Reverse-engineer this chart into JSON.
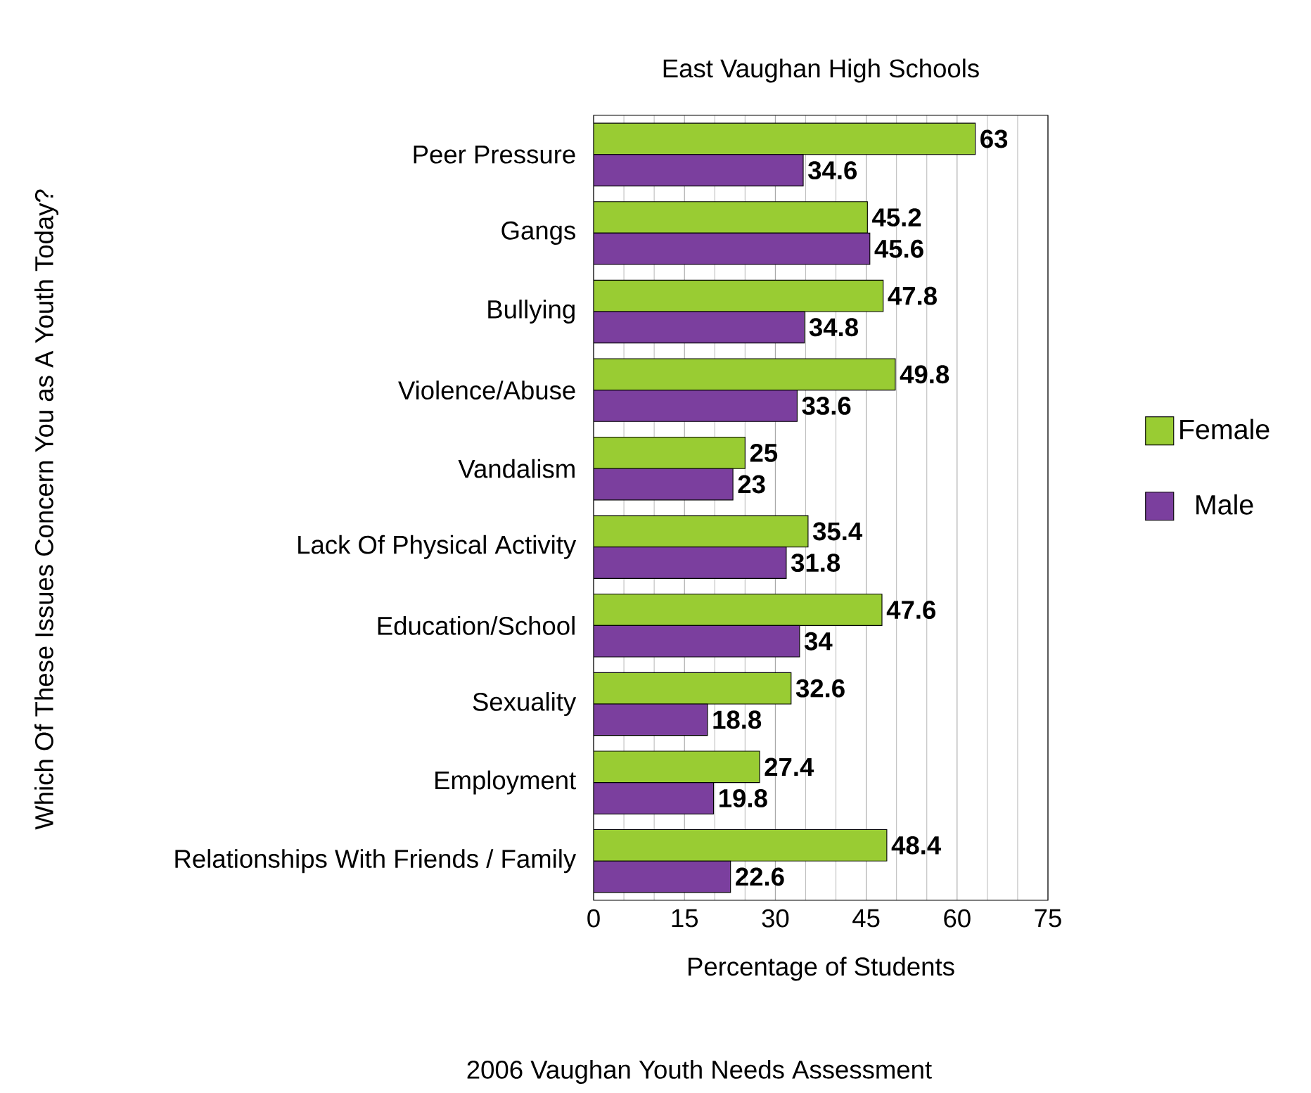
{
  "chart_data": {
    "type": "bar",
    "orientation": "horizontal",
    "title": "East Vaughan High Schools",
    "xlabel": "Percentage of Students",
    "ylabel": "Which Of These Issues Concern You as A Youth Today?",
    "categories": [
      "Peer Pressure",
      "Gangs",
      "Bullying",
      "Violence/Abuse",
      "Vandalism",
      "Lack Of Physical Activity",
      "Education/School",
      "Sexuality",
      "Employment",
      "Relationships With Friends / Family"
    ],
    "series": [
      {
        "name": "Female",
        "color": "#99cc33",
        "values": [
          63,
          45.2,
          47.8,
          49.8,
          25,
          35.4,
          47.6,
          32.6,
          27.4,
          48.4
        ]
      },
      {
        "name": "Male",
        "color": "#7b3f9e",
        "values": [
          34.6,
          45.6,
          34.8,
          33.6,
          23,
          31.8,
          34,
          18.8,
          19.8,
          22.6
        ]
      }
    ],
    "xlim": [
      0,
      75
    ],
    "xticks": [
      0,
      15,
      30,
      45,
      60,
      75
    ],
    "grid": "x",
    "legend": "right",
    "data_labels": true,
    "annotations": [
      "2006 Vaughan Youth Needs Assessment"
    ]
  }
}
